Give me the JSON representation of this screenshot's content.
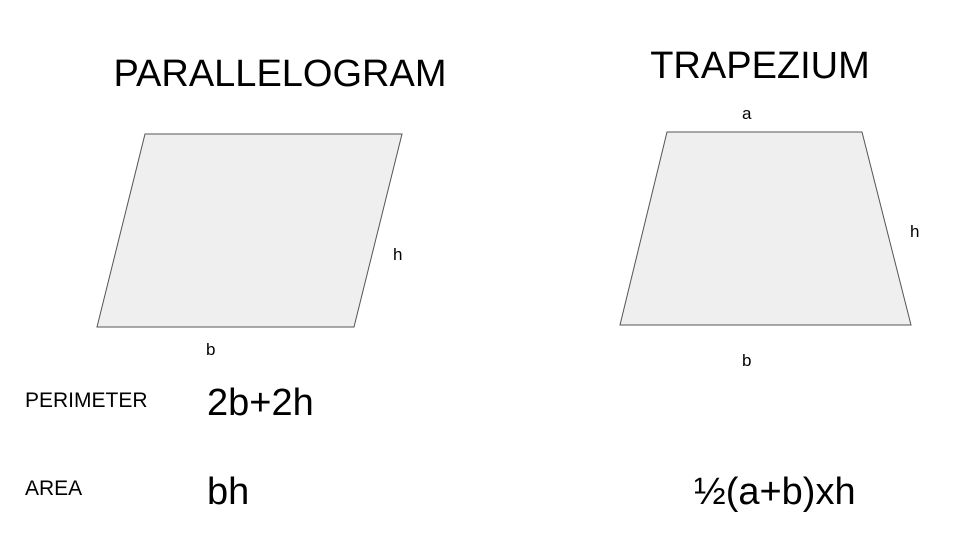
{
  "parallelogram": {
    "title": "PARALLELOGRAM",
    "side_label": "h",
    "base_label": "b"
  },
  "trapezium": {
    "title": "TRAPEZIUM",
    "top_label": "a",
    "side_label": "h",
    "base_label": "b"
  },
  "rows": {
    "perimeter_label": "PERIMETER",
    "area_label": "AREA"
  },
  "formulas": {
    "parallelogram_perimeter": "2b+2h",
    "parallelogram_area": "bh",
    "trapezium_area": "½(a+b)xh"
  },
  "colors": {
    "shape_fill": "#efefef",
    "shape_stroke": "#555555"
  }
}
